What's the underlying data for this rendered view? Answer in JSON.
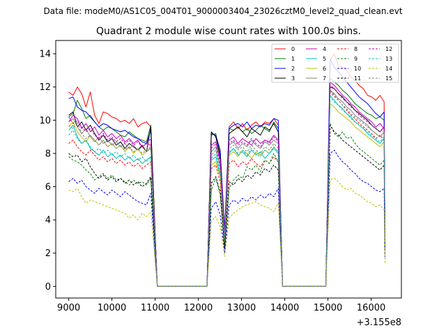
{
  "suptitle": "Data file: modeM0/AS1C05_004T01_9000003404_23026cztM0_level2_quad_clean.evt",
  "chart_data": {
    "type": "line",
    "title": "Quadrant 2 module wise count rates with 100.0s bins.",
    "xlabel": "",
    "ylabel": "",
    "x_offset_label": "+3.155e8",
    "xlim": [
      8700,
      16700
    ],
    "ylim": [
      -0.7,
      14.8
    ],
    "xticks": [
      9000,
      10000,
      11000,
      12000,
      13000,
      14000,
      15000,
      16000
    ],
    "yticks": [
      0,
      2,
      4,
      6,
      8,
      10,
      12,
      14
    ],
    "legend": {
      "position": "top-right",
      "columns": 4
    },
    "gaps": [
      [
        11050,
        12200
      ],
      [
        13950,
        14950
      ]
    ],
    "segments": [
      {
        "x": [
          9000,
          10900
        ]
      },
      {
        "x": [
          12300,
          13850
        ]
      },
      {
        "x": [
          15050,
          16300
        ]
      }
    ],
    "series": [
      {
        "name": "0",
        "color": "#ff0000",
        "dashed": false,
        "seg1": [
          11.7,
          11.5,
          12.0,
          11.6,
          10.8,
          11.7,
          10.3,
          9.8,
          10.5,
          10.4,
          10.2,
          10.1,
          9.9,
          10.0,
          9.8,
          10.1,
          9.6,
          9.8,
          9.9,
          9.6
        ],
        "seg2": [
          9.2,
          9.1,
          8.0,
          3.3,
          9.6,
          9.9,
          9.5,
          9.8,
          9.4,
          9.7,
          9.9,
          9.6,
          9.9,
          9.8,
          10.1,
          9.7
        ],
        "seg3": [
          13.6,
          14.0,
          13.3,
          13.2,
          13.0,
          12.6,
          12.4,
          12.1,
          11.9,
          11.5,
          11.4,
          11.2,
          11.5,
          11.1
        ]
      },
      {
        "name": "1",
        "color": "#008000",
        "dashed": false,
        "seg1": [
          10.2,
          10.4,
          11.2,
          10.7,
          10.1,
          10.3,
          9.9,
          9.6,
          9.4,
          9.6,
          9.5,
          9.3,
          9.1,
          9.0,
          9.3,
          9.1,
          8.9,
          8.8,
          8.7,
          9.7
        ],
        "seg2": [
          9.1,
          9.2,
          7.9,
          3.2,
          9.5,
          9.4,
          9.6,
          9.3,
          9.5,
          9.2,
          9.4,
          9.7,
          9.5,
          9.3,
          9.9,
          9.5
        ],
        "seg3": [
          12.5,
          12.3,
          12.1,
          11.8,
          11.6,
          11.3,
          11.0,
          10.8,
          10.6,
          10.4,
          10.3,
          10.1,
          10.2,
          10.0
        ]
      },
      {
        "name": "2",
        "color": "#0000ff",
        "dashed": false,
        "seg1": [
          11.3,
          11.4,
          10.8,
          10.6,
          10.5,
          10.2,
          9.9,
          9.6,
          9.8,
          9.7,
          9.5,
          9.4,
          9.3,
          9.4,
          9.2,
          9.0,
          8.9,
          8.7,
          8.6,
          9.4
        ],
        "seg2": [
          9.2,
          9.1,
          8.2,
          3.4,
          9.5,
          9.7,
          9.8,
          9.6,
          9.9,
          9.5,
          9.7,
          9.6,
          9.8,
          9.7,
          10.1,
          10.0
        ],
        "seg3": [
          13.7,
          13.2,
          12.9,
          12.6,
          12.3,
          12.0,
          11.7,
          11.4,
          11.2,
          11.0,
          10.7,
          10.4,
          10.2,
          10.5
        ]
      },
      {
        "name": "3",
        "color": "#000000",
        "dashed": false,
        "seg1": [
          10.3,
          10.5,
          9.6,
          9.9,
          9.4,
          9.7,
          9.2,
          8.8,
          9.1,
          8.7,
          8.9,
          8.5,
          8.7,
          8.3,
          8.6,
          8.4,
          8.2,
          8.5,
          8.1,
          9.6
        ],
        "seg2": [
          9.3,
          9.0,
          7.8,
          3.1,
          9.2,
          9.4,
          9.6,
          9.3,
          9.0,
          9.5,
          9.3,
          9.1,
          9.6,
          9.4,
          9.8,
          9.3
        ],
        "seg3": [
          12.0,
          11.9,
          11.6,
          11.4,
          11.1,
          10.9,
          10.6,
          10.4,
          10.2,
          10.0,
          9.7,
          9.5,
          9.3,
          9.6
        ]
      },
      {
        "name": "4",
        "color": "#bf00bf",
        "dashed": false,
        "seg1": [
          9.9,
          10.3,
          10.1,
          9.5,
          9.8,
          9.3,
          9.6,
          9.1,
          9.4,
          9.0,
          9.2,
          8.9,
          9.1,
          8.7,
          8.9,
          8.6,
          8.8,
          8.4,
          8.6,
          8.5
        ],
        "seg2": [
          8.5,
          8.7,
          7.6,
          3.0,
          8.8,
          9.0,
          8.6,
          8.9,
          8.7,
          8.5,
          8.9,
          8.6,
          8.8,
          8.7,
          9.1,
          8.8
        ],
        "seg3": [
          12.3,
          12.1,
          11.8,
          11.5,
          11.3,
          11.0,
          10.8,
          10.5,
          10.3,
          10.1,
          9.9,
          9.6,
          9.8,
          9.5
        ]
      },
      {
        "name": "5",
        "color": "#00bfbf",
        "dashed": false,
        "seg1": [
          9.4,
          9.7,
          9.0,
          8.6,
          8.8,
          8.3,
          8.1,
          7.9,
          8.2,
          7.8,
          8.0,
          7.7,
          7.9,
          7.6,
          7.8,
          7.5,
          7.7,
          7.4,
          7.6,
          7.8
        ],
        "seg2": [
          7.6,
          7.8,
          6.7,
          2.7,
          8.0,
          8.3,
          7.9,
          8.1,
          7.8,
          8.2,
          7.9,
          8.1,
          7.7,
          8.0,
          8.3,
          8.0
        ],
        "seg3": [
          11.5,
          11.2,
          10.9,
          10.7,
          10.4,
          10.2,
          9.9,
          9.7,
          9.5,
          9.2,
          9.0,
          8.8,
          8.6,
          8.9
        ]
      },
      {
        "name": "6",
        "color": "#bfbf00",
        "dashed": false,
        "seg1": [
          9.6,
          9.9,
          9.3,
          9.0,
          8.7,
          9.1,
          8.8,
          8.5,
          8.8,
          8.4,
          8.6,
          8.3,
          8.5,
          8.1,
          8.4,
          8.0,
          8.3,
          7.9,
          8.1,
          8.4
        ],
        "seg2": [
          7.3,
          7.5,
          6.6,
          2.6,
          7.9,
          8.1,
          7.8,
          8.2,
          8.0,
          7.7,
          8.1,
          7.9,
          8.2,
          8.0,
          8.4,
          8.1
        ],
        "seg3": [
          11.0,
          10.8,
          10.5,
          10.3,
          10.1,
          9.9,
          9.6,
          9.4,
          9.2,
          9.0,
          8.8,
          8.6,
          8.4,
          8.7
        ]
      },
      {
        "name": "7",
        "color": "#808080",
        "dashed": false,
        "seg1": [
          9.9,
          10.1,
          9.6,
          9.2,
          9.5,
          9.0,
          8.7,
          9.0,
          8.6,
          8.8,
          8.5,
          8.7,
          8.4,
          8.6,
          8.3,
          8.5,
          8.2,
          8.4,
          8.1,
          8.3
        ],
        "seg2": [
          8.1,
          8.4,
          7.2,
          2.9,
          8.5,
          8.7,
          8.3,
          8.6,
          8.4,
          8.8,
          8.5,
          8.3,
          8.7,
          8.5,
          8.8,
          8.6
        ],
        "seg3": [
          11.8,
          11.6,
          11.3,
          11.1,
          10.8,
          10.6,
          10.3,
          10.1,
          9.9,
          9.7,
          9.4,
          9.2,
          9.0,
          9.3
        ]
      },
      {
        "name": "8",
        "color": "#ff0000",
        "dashed": true,
        "seg1": [
          8.6,
          8.8,
          8.4,
          8.1,
          7.9,
          8.2,
          7.9,
          7.6,
          7.8,
          7.5,
          7.7,
          7.4,
          7.6,
          7.3,
          7.5,
          7.2,
          7.4,
          7.1,
          7.3,
          7.5
        ],
        "seg2": [
          7.1,
          7.3,
          6.3,
          2.5,
          7.4,
          7.6,
          7.2,
          7.5,
          7.3,
          7.7,
          7.4,
          7.2,
          7.6,
          7.4,
          7.8,
          7.5
        ],
        "seg3": [
          11.8,
          11.5,
          11.2,
          10.9,
          10.6,
          10.3,
          10.1,
          9.8,
          9.6,
          9.4,
          9.2,
          8.9,
          9.1,
          8.8
        ]
      },
      {
        "name": "9",
        "color": "#008000",
        "dashed": true,
        "seg1": [
          7.8,
          7.6,
          7.5,
          7.3,
          7.0,
          6.8,
          6.4,
          6.6,
          6.8,
          6.5,
          6.7,
          6.4,
          6.5,
          6.3,
          6.1,
          6.4,
          6.2,
          6.3,
          6.1,
          6.5
        ],
        "seg2": [
          5.8,
          6.5,
          5.5,
          2.2,
          5.9,
          6.4,
          6.7,
          6.5,
          7.2,
          7.0,
          7.3,
          6.9,
          7.6,
          7.4,
          8.0,
          7.5
        ],
        "seg3": [
          9.8,
          9.2,
          9.0,
          9.3,
          8.9,
          9.0,
          8.6,
          8.3,
          8.1,
          7.9,
          7.7,
          7.5,
          7.3,
          7.6
        ]
      },
      {
        "name": "10",
        "color": "#0000ff",
        "dashed": true,
        "seg1": [
          6.3,
          6.5,
          6.2,
          6.4,
          6.0,
          5.8,
          5.6,
          5.9,
          5.7,
          5.5,
          5.8,
          5.6,
          5.4,
          5.7,
          5.5,
          5.3,
          5.1,
          5.0,
          4.9,
          5.6
        ],
        "seg2": [
          4.7,
          5.1,
          4.3,
          2.0,
          4.9,
          5.2,
          5.0,
          5.3,
          5.1,
          5.4,
          5.2,
          5.5,
          5.3,
          5.6,
          5.4,
          5.9
        ],
        "seg3": [
          8.0,
          8.2,
          7.8,
          7.5,
          7.3,
          7.0,
          6.8,
          6.5,
          6.3,
          6.2,
          6.0,
          5.8,
          5.7,
          5.9
        ]
      },
      {
        "name": "11",
        "color": "#000000",
        "dashed": true,
        "seg1": [
          8.0,
          7.8,
          7.9,
          7.5,
          7.7,
          7.2,
          6.8,
          6.5,
          6.7,
          6.4,
          6.6,
          6.3,
          6.5,
          6.2,
          6.4,
          6.1,
          6.3,
          6.0,
          6.2,
          6.6
        ],
        "seg2": [
          6.2,
          6.6,
          5.7,
          2.3,
          6.3,
          6.1,
          6.5,
          6.3,
          6.7,
          6.5,
          6.9,
          6.7,
          7.1,
          6.9,
          7.3,
          7.0
        ],
        "seg3": [
          9.7,
          9.3,
          9.1,
          8.8,
          8.6,
          8.4,
          8.2,
          8.0,
          7.8,
          7.6,
          7.4,
          7.2,
          7.0,
          7.3
        ]
      },
      {
        "name": "12",
        "color": "#bf00bf",
        "dashed": true,
        "seg1": [
          10.2,
          9.8,
          10.0,
          9.6,
          9.3,
          9.5,
          9.1,
          8.9,
          9.2,
          8.8,
          9.0,
          8.7,
          8.9,
          8.6,
          8.8,
          8.5,
          8.7,
          8.4,
          8.6,
          8.9
        ],
        "seg2": [
          8.3,
          8.6,
          7.4,
          2.9,
          8.6,
          8.8,
          8.5,
          8.7,
          8.5,
          8.9,
          8.6,
          8.4,
          8.8,
          8.6,
          9.0,
          8.7
        ],
        "seg3": [
          12.1,
          11.9,
          11.6,
          11.3,
          11.1,
          10.8,
          10.6,
          10.3,
          10.1,
          9.9,
          9.7,
          9.5,
          9.3,
          9.6
        ]
      },
      {
        "name": "13",
        "color": "#00bfbf",
        "dashed": true,
        "seg1": [
          9.1,
          9.4,
          8.9,
          8.6,
          8.8,
          8.4,
          8.1,
          8.3,
          8.0,
          8.2,
          7.9,
          8.1,
          7.8,
          8.0,
          7.7,
          7.9,
          7.6,
          7.8,
          7.5,
          7.8
        ],
        "seg2": [
          7.7,
          8.0,
          6.9,
          2.7,
          8.1,
          8.3,
          8.0,
          8.2,
          7.9,
          8.3,
          8.0,
          7.8,
          8.2,
          8.0,
          8.4,
          8.1
        ],
        "seg3": [
          11.4,
          11.1,
          10.9,
          10.6,
          10.4,
          10.1,
          9.9,
          9.7,
          9.5,
          9.3,
          9.1,
          8.9,
          8.7,
          9.0
        ]
      },
      {
        "name": "14",
        "color": "#bfbf00",
        "dashed": true,
        "seg1": [
          5.8,
          5.7,
          5.9,
          5.4,
          5.0,
          5.2,
          5.1,
          5.0,
          4.9,
          4.8,
          4.7,
          4.6,
          4.5,
          4.4,
          4.1,
          4.3,
          4.0,
          4.4,
          4.2,
          4.5
        ],
        "seg2": [
          3.9,
          4.2,
          3.6,
          1.8,
          4.1,
          4.4,
          4.6,
          4.8,
          4.9,
          5.0,
          5.1,
          4.9,
          4.8,
          4.7,
          4.5,
          5.0
        ],
        "seg3": [
          6.4,
          6.5,
          6.3,
          6.0,
          5.8,
          5.9,
          5.6,
          5.5,
          5.3,
          5.1,
          5.0,
          4.8,
          4.9,
          4.6
        ]
      },
      {
        "name": "15",
        "color": "#808080",
        "dashed": true,
        "seg1": [
          9.7,
          9.5,
          9.9,
          9.2,
          8.9,
          9.1,
          8.8,
          8.5,
          8.8,
          8.4,
          8.6,
          8.3,
          8.5,
          8.2,
          8.4,
          8.1,
          8.3,
          8.0,
          8.2,
          8.4
        ],
        "seg2": [
          7.9,
          8.2,
          7.1,
          2.8,
          8.3,
          8.5,
          8.2,
          8.4,
          8.1,
          8.5,
          8.2,
          8.0,
          8.4,
          8.2,
          8.6,
          8.3
        ],
        "seg3": [
          11.7,
          11.4,
          11.2,
          10.9,
          10.7,
          10.4,
          10.2,
          10.0,
          9.8,
          9.6,
          9.4,
          9.2,
          9.0,
          9.3
        ]
      }
    ]
  }
}
